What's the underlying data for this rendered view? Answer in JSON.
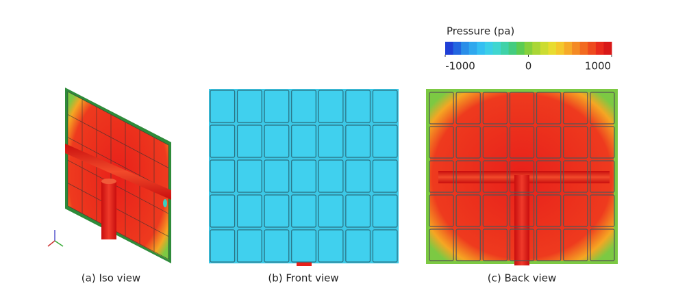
{
  "colorbar": {
    "title": "Pressure (pa)",
    "range": [
      -1000,
      1000
    ],
    "ticks": [
      -1000,
      0,
      1000
    ]
  },
  "panels": [
    {
      "caption": "(a) Iso view"
    },
    {
      "caption": "(b) Front view"
    },
    {
      "caption": "(c) Back view"
    }
  ]
}
